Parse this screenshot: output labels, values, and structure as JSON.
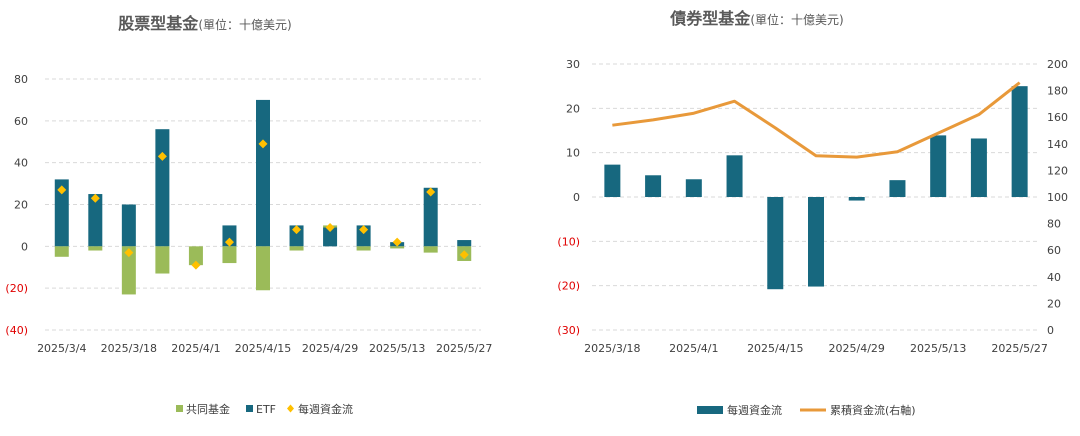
{
  "chart_data": [
    {
      "type": "bar",
      "title": "股票型基金",
      "subtitle": "(單位：十億美元)",
      "ylim": [
        -40,
        80
      ],
      "yticks": [
        80,
        60,
        40,
        20,
        0,
        -20,
        -40
      ],
      "ytick_labels": [
        "80",
        "60",
        "40",
        "20",
        "0",
        "(20)",
        "(40)"
      ],
      "grid": true,
      "legend_position": "bottom",
      "categories": [
        "2025/3/4",
        "2025/3/11",
        "2025/3/18",
        "2025/3/25",
        "2025/4/1",
        "2025/4/8",
        "2025/4/15",
        "2025/4/22",
        "2025/4/29",
        "2025/5/6",
        "2025/5/13",
        "2025/5/20",
        "2025/5/27"
      ],
      "xtick_labels": [
        "2025/3/4",
        "2025/3/18",
        "2025/4/1",
        "2025/4/15",
        "2025/4/29",
        "2025/5/13",
        "2025/5/27"
      ],
      "xtick_indices": [
        0,
        2,
        4,
        6,
        8,
        10,
        12
      ],
      "series": [
        {
          "name": "共同基金",
          "kind": "bar",
          "color": "#9bbb59",
          "values": [
            -5,
            -2,
            -23,
            -13,
            -9,
            -8,
            -21,
            -2,
            1,
            -2,
            -1,
            -3,
            -7
          ]
        },
        {
          "name": "ETF",
          "kind": "bar",
          "color": "#17687f",
          "values": [
            32,
            25,
            20,
            56,
            0,
            10,
            70,
            10,
            9,
            10,
            2,
            28,
            3
          ]
        },
        {
          "name": "每週資金流",
          "kind": "marker",
          "color": "#ffc000",
          "values": [
            27,
            23,
            -3,
            43,
            -9,
            2,
            49,
            8,
            9,
            8,
            2,
            26,
            -4
          ]
        }
      ]
    },
    {
      "type": "bar+line",
      "title": "債券型基金",
      "subtitle": "(單位：十億美元)",
      "ylim": [
        -30,
        30
      ],
      "yticks": [
        30,
        20,
        10,
        0,
        -10,
        -20,
        -30
      ],
      "ytick_labels": [
        "30",
        "20",
        "10",
        "0",
        "(10)",
        "(20)",
        "(30)"
      ],
      "y2lim": [
        0,
        200
      ],
      "y2ticks": [
        200,
        180,
        160,
        140,
        120,
        100,
        80,
        60,
        40,
        20,
        0
      ],
      "y2tick_labels": [
        "200",
        "180",
        "160",
        "140",
        "120",
        "100",
        "80",
        "60",
        "40",
        "20",
        "0"
      ],
      "grid": true,
      "legend_position": "bottom",
      "categories": [
        "2025/3/18",
        "2025/3/25",
        "2025/4/1",
        "2025/4/8",
        "2025/4/15",
        "2025/4/22",
        "2025/4/29",
        "2025/5/6",
        "2025/5/13",
        "2025/5/20",
        "2025/5/27"
      ],
      "xtick_labels": [
        "2025/3/18",
        "2025/4/1",
        "2025/4/15",
        "2025/4/29",
        "2025/5/13",
        "2025/5/27"
      ],
      "xtick_indices": [
        0,
        2,
        4,
        6,
        8,
        10
      ],
      "series": [
        {
          "name": "每週資金流",
          "kind": "bar",
          "axis": "left",
          "color": "#17687f",
          "values": [
            7.3,
            4.9,
            4.0,
            9.4,
            -20.8,
            -20.2,
            -0.8,
            3.8,
            13.9,
            13.2,
            25.0
          ]
        },
        {
          "name": "累積資金流(右軸)",
          "kind": "line",
          "axis": "right",
          "color": "#e8993a",
          "values": [
            154,
            158,
            163,
            172,
            152,
            131,
            130,
            134,
            148,
            162,
            186
          ]
        }
      ]
    }
  ]
}
